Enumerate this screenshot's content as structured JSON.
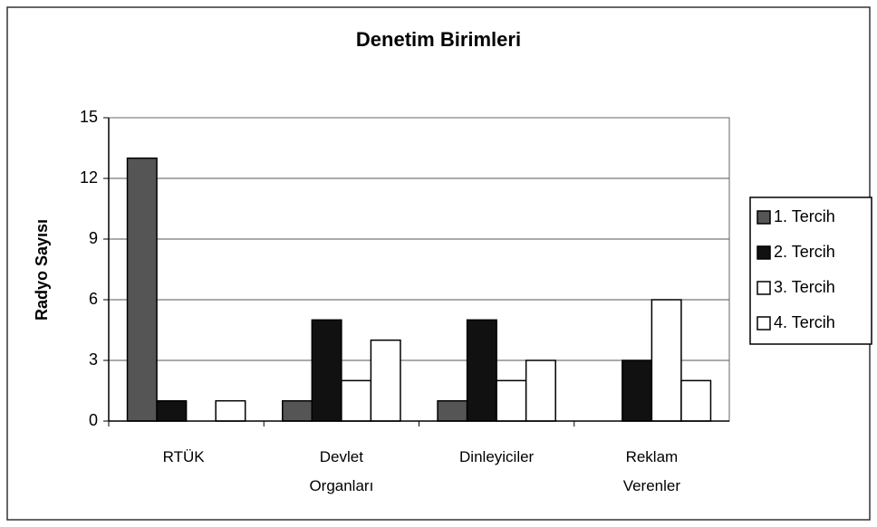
{
  "chart_data": {
    "type": "bar",
    "title": "Denetim Birimleri",
    "y_label": "Radyo Sayısı",
    "categories": [
      "RTÜK",
      "Devlet Organları",
      "Dinleyiciler",
      "Reklam Verenler"
    ],
    "series": [
      {
        "name": "1. Tercih",
        "color": "#555555",
        "values": [
          13,
          1,
          1,
          0
        ]
      },
      {
        "name": "2. Tercih",
        "color": "#111111",
        "values": [
          1,
          5,
          5,
          3
        ]
      },
      {
        "name": "3. Tercih",
        "color": "#ffffff",
        "values": [
          0,
          2,
          2,
          6
        ]
      },
      {
        "name": "4. Tercih",
        "color": "#ffffff",
        "values": [
          1,
          4,
          3,
          2
        ]
      }
    ],
    "ylim": [
      0,
      15
    ],
    "yticks": [
      0,
      3,
      6,
      9,
      12,
      15
    ],
    "grid": true,
    "legend": "right"
  }
}
